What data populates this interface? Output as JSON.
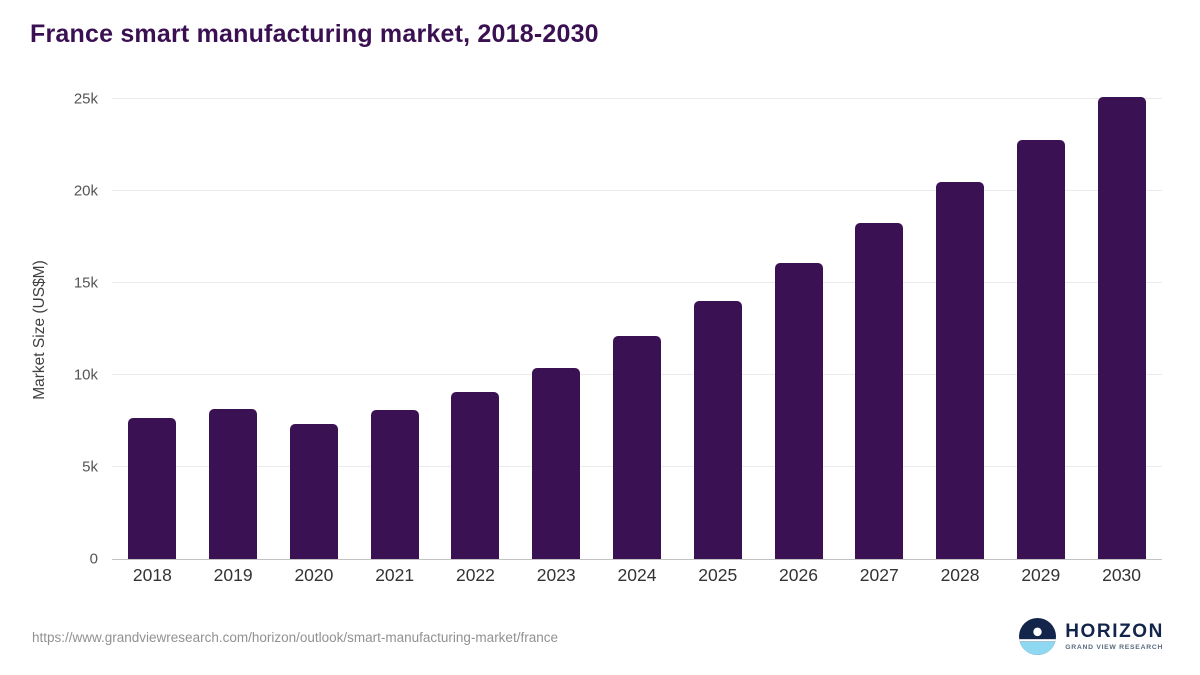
{
  "title": "France smart manufacturing market, 2018-2030",
  "footer": {
    "source_url": "https://www.grandviewresearch.com/horizon/outlook/smart-manufacturing-market/france"
  },
  "logo": {
    "name": "HORIZON",
    "subtitle": "GRAND VIEW RESEARCH"
  },
  "colors": {
    "accent_title": "#3a1053",
    "bar": "#3a1254",
    "logo_navy": "#13254a",
    "logo_blue": "#8fd8f2"
  },
  "chart_data": {
    "type": "bar",
    "title": "France smart manufacturing market, 2018-2030",
    "categories": [
      "2018",
      "2019",
      "2020",
      "2021",
      "2022",
      "2023",
      "2024",
      "2025",
      "2026",
      "2027",
      "2028",
      "2029",
      "2030"
    ],
    "values": [
      7650,
      8150,
      7350,
      8100,
      9100,
      10400,
      12100,
      14000,
      16100,
      18250,
      20500,
      22750,
      25100
    ],
    "xlabel": "",
    "ylabel": "Market Size (US$M)",
    "ylim": [
      0,
      25000
    ],
    "yticks": [
      {
        "value": 0,
        "label": "0"
      },
      {
        "value": 5000,
        "label": "5k"
      },
      {
        "value": 10000,
        "label": "10k"
      },
      {
        "value": 15000,
        "label": "15k"
      },
      {
        "value": 20000,
        "label": "20k"
      },
      {
        "value": 25000,
        "label": "25k"
      }
    ],
    "grid": true,
    "legend": "none"
  }
}
